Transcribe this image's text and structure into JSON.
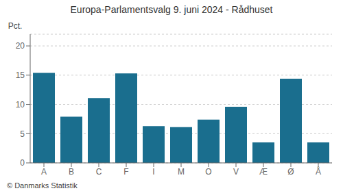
{
  "chart_data": {
    "type": "bar",
    "title": "Europa-Parlamentsvalg 9. juni 2024 - Rådhuset",
    "categories": [
      "A",
      "B",
      "C",
      "F",
      "I",
      "M",
      "O",
      "V",
      "Æ",
      "Ø",
      "Å"
    ],
    "values": [
      15.4,
      7.9,
      11.1,
      15.3,
      6.3,
      6.1,
      7.4,
      9.6,
      3.5,
      14.4,
      3.5
    ],
    "color": "#1a6e8e",
    "ylabel": "Pct.",
    "ylim": [
      0,
      22
    ],
    "yticks": [
      0,
      5,
      10,
      15,
      20
    ],
    "grid": true,
    "annotations": [
      "© Danmarks Statistik"
    ]
  }
}
